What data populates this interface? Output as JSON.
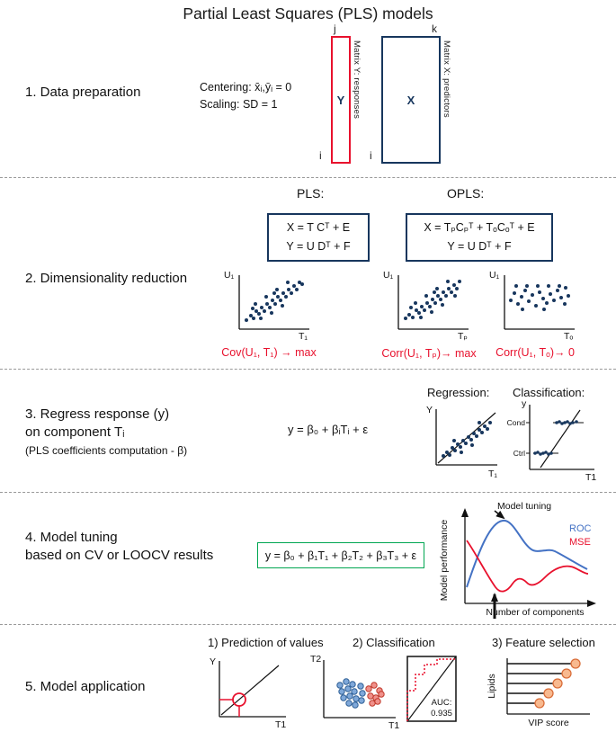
{
  "title": "Partial Least Squares (PLS) models",
  "colors": {
    "navy": "#17365d",
    "red": "#e8112d",
    "blue": "#4472c4",
    "green": "#00a651",
    "orange_fill": "#f8b98f",
    "orange_stroke": "#d96d39"
  },
  "section1": {
    "label": "1. Data preparation",
    "centering": "Centering: x̄ᵢ,ȳᵢ = 0",
    "scaling": "Scaling: SD = 1",
    "matrix_y": {
      "letter": "Y",
      "col_index": "j",
      "row_index": "i",
      "side_label": "Matrix Y: responses"
    },
    "matrix_x": {
      "letter": "X",
      "col_index": "k",
      "row_index": "i",
      "side_label": "Matrix X: predictors"
    }
  },
  "section2": {
    "label": "2. Dimensionality reduction",
    "pls_header": "PLS:",
    "opls_header": "OPLS:",
    "pls_eq": [
      "X = T Cᵀ + E",
      "Y = U Dᵀ + F"
    ],
    "opls_eq": [
      "X = TₚCₚᵀ + TₒCₒᵀ + E",
      "Y = U Dᵀ + F"
    ],
    "plots": [
      {
        "ylabel": "U₁",
        "xlabel": "T₁",
        "caption": "Cov(U₁, T₁) → max",
        "points": [
          [
            28,
            60
          ],
          [
            33,
            55
          ],
          [
            36,
            58
          ],
          [
            39,
            50
          ],
          [
            42,
            53
          ],
          [
            45,
            46
          ],
          [
            48,
            50
          ],
          [
            51,
            42
          ],
          [
            54,
            46
          ],
          [
            57,
            38
          ],
          [
            60,
            42
          ],
          [
            63,
            34
          ],
          [
            66,
            38
          ],
          [
            69,
            30
          ],
          [
            72,
            34
          ],
          [
            75,
            26
          ],
          [
            78,
            30
          ],
          [
            81,
            22
          ],
          [
            84,
            26
          ],
          [
            87,
            18
          ],
          [
            44,
            58
          ],
          [
            56,
            52
          ],
          [
            68,
            44
          ],
          [
            38,
            42
          ],
          [
            50,
            34
          ],
          [
            62,
            26
          ],
          [
            74,
            18
          ],
          [
            90,
            20
          ],
          [
            35,
            47
          ],
          [
            59,
            30
          ]
        ]
      },
      {
        "ylabel": "U₁",
        "xlabel": "Tₚ",
        "caption": "Corr(U₁, Tₚ)→ max",
        "points": [
          [
            28,
            58
          ],
          [
            32,
            54
          ],
          [
            36,
            57
          ],
          [
            40,
            49
          ],
          [
            43,
            52
          ],
          [
            46,
            45
          ],
          [
            49,
            49
          ],
          [
            52,
            41
          ],
          [
            55,
            45
          ],
          [
            58,
            37
          ],
          [
            61,
            41
          ],
          [
            64,
            33
          ],
          [
            67,
            37
          ],
          [
            70,
            29
          ],
          [
            73,
            33
          ],
          [
            76,
            25
          ],
          [
            79,
            29
          ],
          [
            82,
            21
          ],
          [
            85,
            25
          ],
          [
            88,
            17
          ],
          [
            45,
            57
          ],
          [
            57,
            51
          ],
          [
            69,
            43
          ],
          [
            39,
            41
          ],
          [
            51,
            33
          ],
          [
            63,
            25
          ],
          [
            75,
            17
          ],
          [
            34,
            46
          ],
          [
            60,
            29
          ],
          [
            83,
            33
          ]
        ]
      },
      {
        "ylabel": "U₁",
        "xlabel": "Tₒ",
        "caption": "Corr(U₁, Tₒ)→ 0",
        "points": [
          [
            27,
            38
          ],
          [
            31,
            30
          ],
          [
            35,
            42
          ],
          [
            39,
            34
          ],
          [
            43,
            27
          ],
          [
            47,
            39
          ],
          [
            51,
            32
          ],
          [
            55,
            44
          ],
          [
            59,
            29
          ],
          [
            63,
            36
          ],
          [
            67,
            41
          ],
          [
            71,
            31
          ],
          [
            75,
            38
          ],
          [
            79,
            27
          ],
          [
            83,
            35
          ],
          [
            87,
            42
          ],
          [
            91,
            33
          ],
          [
            33,
            22
          ],
          [
            45,
            22
          ],
          [
            57,
            22
          ],
          [
            69,
            22
          ],
          [
            81,
            22
          ],
          [
            40,
            48
          ],
          [
            64,
            48
          ],
          [
            88,
            24
          ]
        ]
      }
    ]
  },
  "section3": {
    "label_line1": "3. Regress response (y)",
    "label_line2": "on component Tᵢ",
    "label_line3": "(PLS coefficients computation - β)",
    "formula": "y = β₀ + βᵢTᵢ + ε",
    "regression_header": "Regression:",
    "classification_header": "Classification:",
    "regression_plot": {
      "ylabel": "Y",
      "xlabel": "T₁",
      "points": [
        [
          26,
          64
        ],
        [
          30,
          60
        ],
        [
          33,
          63
        ],
        [
          36,
          55
        ],
        [
          39,
          58
        ],
        [
          42,
          51
        ],
        [
          45,
          54
        ],
        [
          48,
          47
        ],
        [
          51,
          50
        ],
        [
          54,
          43
        ],
        [
          57,
          46
        ],
        [
          60,
          39
        ],
        [
          63,
          42
        ],
        [
          66,
          35
        ],
        [
          69,
          38
        ],
        [
          72,
          31
        ],
        [
          75,
          34
        ],
        [
          78,
          27
        ],
        [
          46,
          60
        ],
        [
          58,
          52
        ],
        [
          38,
          47
        ],
        [
          66,
          27
        ]
      ]
    },
    "classification_plot": {
      "ylabel": "y",
      "xlabel": "T1",
      "group1_label": "Cond",
      "group2_label": "Ctrl",
      "group1_points": [
        [
          52,
          32
        ],
        [
          55,
          31
        ],
        [
          58,
          33
        ],
        [
          61,
          32
        ],
        [
          64,
          31
        ],
        [
          67,
          33
        ],
        [
          70,
          32
        ],
        [
          74,
          31
        ]
      ],
      "group2_points": [
        [
          28,
          66
        ],
        [
          31,
          65
        ],
        [
          34,
          67
        ],
        [
          37,
          66
        ],
        [
          40,
          65
        ],
        [
          43,
          67
        ],
        [
          46,
          66
        ]
      ]
    }
  },
  "section4": {
    "label_line1": "4. Model tuning",
    "label_line2": "based on CV or LOOCV results",
    "formula": "y = β₀ + β₁T₁ + β₂T₂ + β₃T₃ + ε",
    "plot": {
      "ylabel": "Model performance",
      "xlabel": "Number of components",
      "annotation": "Model tuning",
      "legend": [
        {
          "label": "ROC",
          "color": "#4472c4"
        },
        {
          "label": "MSE",
          "color": "#e8112d"
        }
      ]
    }
  },
  "section5": {
    "label": "5. Model application",
    "sub1_header": "1) Prediction of values",
    "sub2_header": "2) Classification",
    "sub3_header": "3) Feature selection",
    "prediction_plot": {
      "ylabel": "Y",
      "xlabel": "T1"
    },
    "classification_plot": {
      "ylabel": "T2",
      "xlabel": "T1",
      "blue_points": [
        [
          34,
          40
        ],
        [
          41,
          36
        ],
        [
          48,
          39
        ],
        [
          36,
          47
        ],
        [
          43,
          44
        ],
        [
          50,
          47
        ],
        [
          57,
          41
        ],
        [
          38,
          54
        ],
        [
          45,
          52
        ],
        [
          52,
          55
        ],
        [
          59,
          49
        ],
        [
          44,
          60
        ],
        [
          51,
          62
        ],
        [
          58,
          57
        ]
      ],
      "red_points": [
        [
          66,
          44
        ],
        [
          72,
          40
        ],
        [
          78,
          46
        ],
        [
          68,
          52
        ],
        [
          74,
          54
        ],
        [
          80,
          50
        ],
        [
          70,
          60
        ],
        [
          76,
          58
        ]
      ]
    },
    "roc_plot": {
      "auc_label": "AUC:",
      "auc_value": "0.935"
    },
    "feature_plot": {
      "ylabel": "Lipids",
      "xlabel": "VIP score",
      "points": [
        [
          100,
          14
        ],
        [
          90,
          25
        ],
        [
          80,
          36
        ],
        [
          70,
          47
        ],
        [
          60,
          58
        ]
      ]
    }
  }
}
